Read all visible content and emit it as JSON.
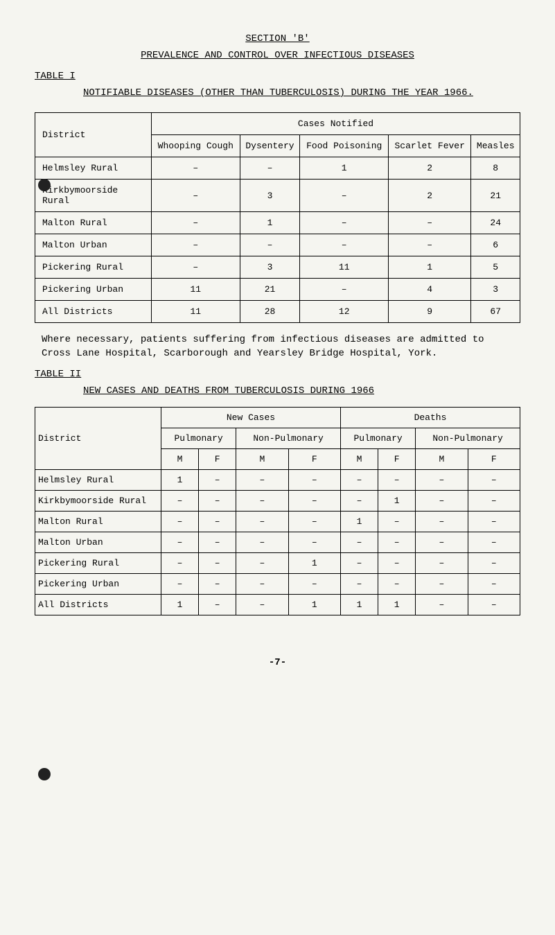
{
  "section_title": "SECTION 'B'",
  "prevalence_title": "PREVALENCE AND CONTROL OVER INFECTIOUS DISEASES",
  "table1_label": "TABLE I",
  "notifiable_title": "NOTIFIABLE DISEASES (OTHER THAN TUBERCULOSIS) DURING THE YEAR 1966.",
  "table1": {
    "header_group": "Cases Notified",
    "col_district": "District",
    "cols": [
      "Whooping Cough",
      "Dysentery",
      "Food Poisoning",
      "Scarlet Fever",
      "Measles"
    ],
    "rows": [
      {
        "d": "Helmsley Rural",
        "v": [
          "–",
          "–",
          "1",
          "2",
          "8"
        ]
      },
      {
        "d": "Kirkbymoorside Rural",
        "v": [
          "–",
          "3",
          "–",
          "2",
          "21"
        ]
      },
      {
        "d": "Malton Rural",
        "v": [
          "–",
          "1",
          "–",
          "–",
          "24"
        ]
      },
      {
        "d": "Malton Urban",
        "v": [
          "–",
          "–",
          "–",
          "–",
          "6"
        ]
      },
      {
        "d": "Pickering Rural",
        "v": [
          "–",
          "3",
          "11",
          "1",
          "5"
        ]
      },
      {
        "d": "Pickering Urban",
        "v": [
          "11",
          "21",
          "–",
          "4",
          "3"
        ]
      },
      {
        "d": "All Districts",
        "v": [
          "11",
          "28",
          "12",
          "9",
          "67"
        ]
      }
    ]
  },
  "note_text": "Where necessary, patients suffering from infectious diseases are admitted to Cross Lane Hospital, Scarborough and Yearsley Bridge Hospital, York.",
  "table2_label": "TABLE II",
  "new_cases_title": "NEW CASES AND DEATHS FROM TUBERCULOSIS DURING 1966",
  "table2": {
    "col_district": "District",
    "group_newcases": "New Cases",
    "group_deaths": "Deaths",
    "sub_pulmonary": "Pulmonary",
    "sub_nonpulmonary": "Non-Pulmonary",
    "mf": [
      "M",
      "F"
    ],
    "rows": [
      {
        "d": "Helmsley Rural",
        "v": [
          "1",
          "–",
          "–",
          "–",
          "–",
          "–",
          "–",
          "–"
        ]
      },
      {
        "d": "Kirkbymoorside Rural",
        "v": [
          "–",
          "–",
          "–",
          "–",
          "–",
          "1",
          "–",
          "–"
        ]
      },
      {
        "d": "Malton Rural",
        "v": [
          "–",
          "–",
          "–",
          "–",
          "1",
          "–",
          "–",
          "–"
        ]
      },
      {
        "d": "Malton Urban",
        "v": [
          "–",
          "–",
          "–",
          "–",
          "–",
          "–",
          "–",
          "–"
        ]
      },
      {
        "d": "Pickering Rural",
        "v": [
          "–",
          "–",
          "–",
          "1",
          "–",
          "–",
          "–",
          "–"
        ]
      },
      {
        "d": "Pickering Urban",
        "v": [
          "–",
          "–",
          "–",
          "–",
          "–",
          "–",
          "–",
          "–"
        ]
      },
      {
        "d": "All Districts",
        "v": [
          "1",
          "–",
          "–",
          "1",
          "1",
          "1",
          "–",
          "–"
        ]
      }
    ]
  },
  "page_number": "-7-"
}
